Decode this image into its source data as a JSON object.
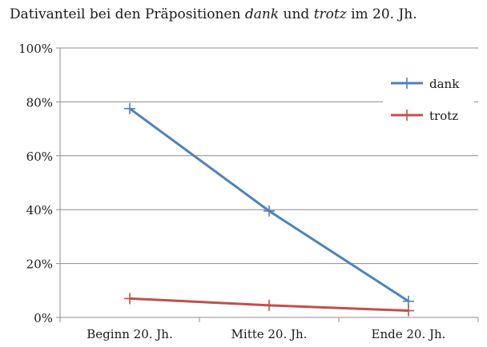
{
  "chart_data": {
    "type": "line",
    "title_parts": [
      {
        "text": "Dativanteil bei den Präpositionen ",
        "italic": false
      },
      {
        "text": "dank",
        "italic": true
      },
      {
        "text": " und ",
        "italic": false
      },
      {
        "text": "trotz",
        "italic": true
      },
      {
        "text": " im 20. Jh.",
        "italic": false
      }
    ],
    "categories": [
      "Beginn 20. Jh.",
      "Mitte 20. Jh.",
      "Ende 20. Jh."
    ],
    "series": [
      {
        "name": "dank",
        "values": [
          77.5,
          39.5,
          6
        ],
        "color": "#4f81bd"
      },
      {
        "name": "trotz",
        "values": [
          7,
          4.5,
          2.5
        ],
        "color": "#c0504d"
      }
    ],
    "ylim": [
      0,
      100
    ],
    "yticks": [
      0,
      20,
      40,
      60,
      80,
      100
    ],
    "ytick_labels": [
      "0%",
      "20%",
      "40%",
      "60%",
      "80%",
      "100%"
    ],
    "grid": true,
    "legend_position": "top-right",
    "marker": "plus"
  }
}
